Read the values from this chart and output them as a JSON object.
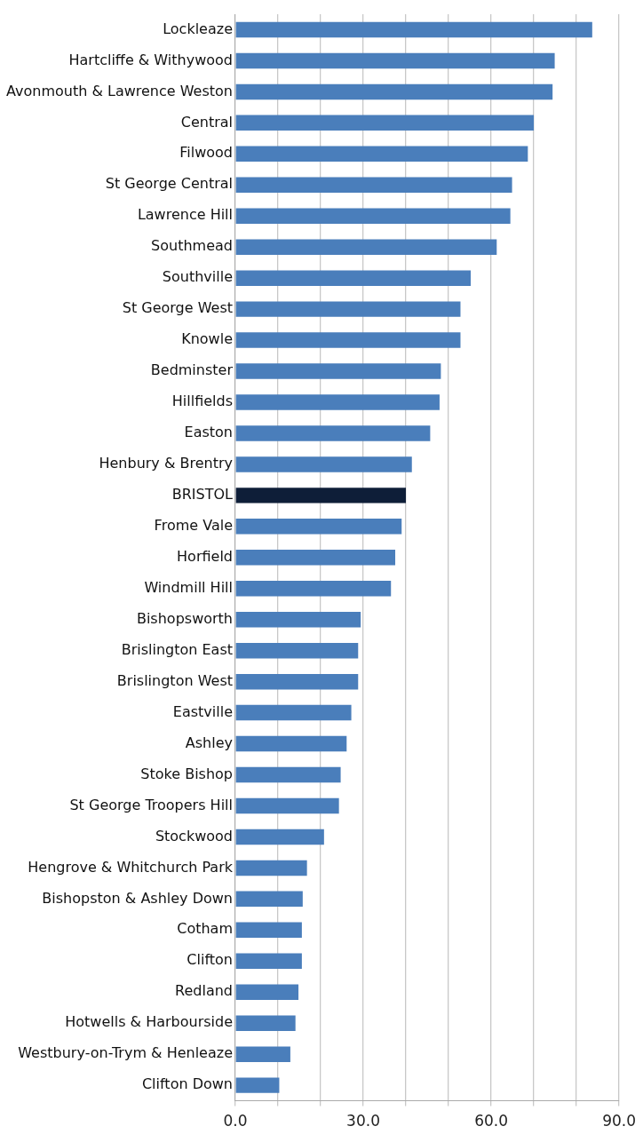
{
  "chart_data": {
    "type": "bar",
    "orientation": "horizontal",
    "categories": [
      "Lockleaze",
      "Hartcliffe & Withywood",
      "Avonmouth & Lawrence Weston",
      "Central",
      "Filwood",
      "St George Central",
      "Lawrence Hill",
      "Southmead",
      "Southville",
      "St George West",
      "Knowle",
      "Bedminster",
      "Hillfields",
      "Easton",
      "Henbury & Brentry",
      "BRISTOL",
      "Frome Vale",
      "Horfield",
      "Windmill Hill",
      "Bishopsworth",
      "Brislington East",
      "Brislington West",
      "Eastville",
      "Ashley",
      "Stoke Bishop",
      "St George Troopers Hill",
      "Stockwood",
      "Hengrove & Whitchurch Park",
      "Bishopston & Ashley Down",
      "Cotham",
      "Clifton",
      "Redland",
      "Hotwells & Harbourside",
      "Westbury-on-Trym & Henleaze",
      "Clifton Down"
    ],
    "values": [
      83.7,
      74.9,
      74.4,
      70.0,
      68.6,
      64.9,
      64.5,
      61.3,
      55.2,
      52.8,
      52.8,
      48.2,
      47.9,
      45.7,
      41.4,
      40.0,
      39.0,
      37.5,
      36.5,
      29.4,
      28.8,
      28.8,
      27.2,
      26.1,
      24.7,
      24.3,
      20.8,
      16.8,
      15.8,
      15.6,
      15.6,
      14.8,
      14.1,
      12.9,
      10.3
    ],
    "colors": [
      "#4a7ebb",
      "#4a7ebb",
      "#4a7ebb",
      "#4a7ebb",
      "#4a7ebb",
      "#4a7ebb",
      "#4a7ebb",
      "#4a7ebb",
      "#4a7ebb",
      "#4a7ebb",
      "#4a7ebb",
      "#4a7ebb",
      "#4a7ebb",
      "#4a7ebb",
      "#4a7ebb",
      "#0e1e38",
      "#4a7ebb",
      "#4a7ebb",
      "#4a7ebb",
      "#4a7ebb",
      "#4a7ebb",
      "#4a7ebb",
      "#4a7ebb",
      "#4a7ebb",
      "#4a7ebb",
      "#4a7ebb",
      "#4a7ebb",
      "#4a7ebb",
      "#4a7ebb",
      "#4a7ebb",
      "#4a7ebb",
      "#4a7ebb",
      "#4a7ebb",
      "#4a7ebb",
      "#4a7ebb"
    ],
    "xlim": [
      0,
      90
    ],
    "xticks": [
      {
        "value": 0,
        "label": "0.0"
      },
      {
        "value": 10,
        "label": null
      },
      {
        "value": 20,
        "label": null
      },
      {
        "value": 30,
        "label": "30.0"
      },
      {
        "value": 40,
        "label": null
      },
      {
        "value": 50,
        "label": null
      },
      {
        "value": 60,
        "label": "60.0"
      },
      {
        "value": 70,
        "label": null
      },
      {
        "value": 80,
        "label": null
      },
      {
        "value": 90,
        "label": "90.0"
      }
    ],
    "grid": "x",
    "legend": false
  }
}
